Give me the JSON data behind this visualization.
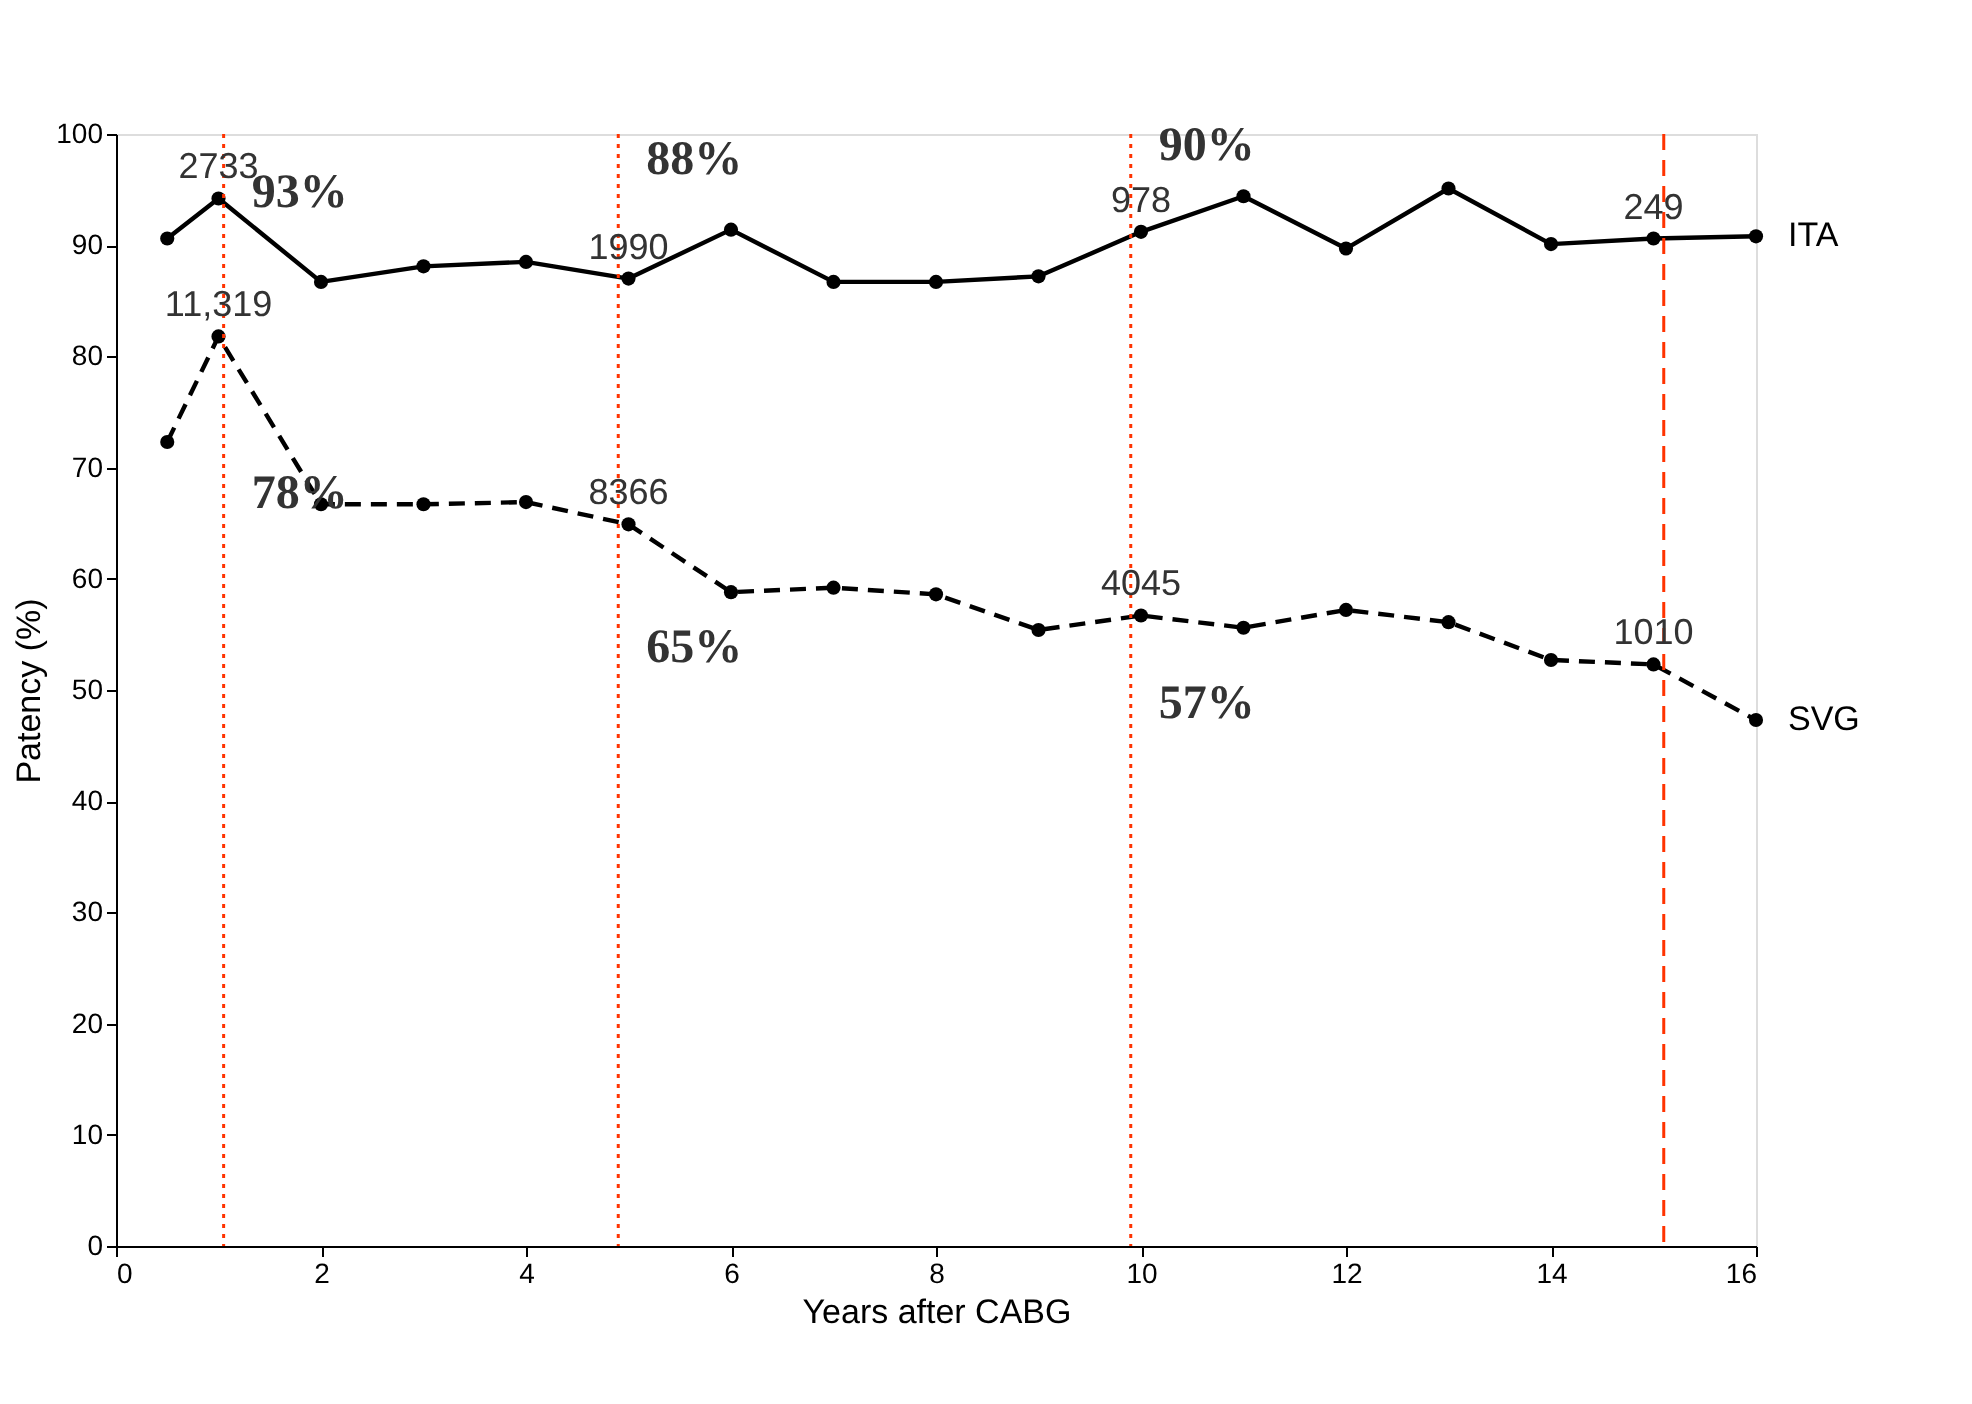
{
  "chart_data": {
    "type": "line",
    "xlabel": "Years after CABG",
    "ylabel": "Patency (%)",
    "x": [
      0.5,
      1,
      2,
      3,
      4,
      5,
      6,
      7,
      8,
      9,
      10,
      11,
      12,
      13,
      14,
      15,
      16
    ],
    "xlim": [
      0,
      16
    ],
    "xticks": [
      0,
      2,
      4,
      6,
      8,
      10,
      12,
      14,
      16
    ],
    "ylim": [
      0,
      100
    ],
    "yticks": [
      0,
      10,
      20,
      30,
      40,
      50,
      60,
      70,
      80,
      90,
      100
    ],
    "grid": false,
    "marker": "circle",
    "series": [
      {
        "name": "ITA",
        "color": "#000000",
        "line_style": "solid",
        "values": [
          90.6,
          94.2,
          86.7,
          88.1,
          88.5,
          87.0,
          91.4,
          86.7,
          86.7,
          87.2,
          91.2,
          94.4,
          89.7,
          95.1,
          90.1,
          90.6,
          90.8
        ]
      },
      {
        "name": "SVG",
        "color": "#000000",
        "line_style": "dashed",
        "values": [
          72.3,
          81.8,
          66.7,
          66.7,
          66.9,
          64.9,
          58.8,
          59.2,
          58.6,
          55.4,
          56.7,
          55.6,
          57.2,
          56.1,
          52.7,
          52.3,
          47.3
        ]
      }
    ],
    "ref_lines": [
      {
        "axis": "x",
        "value": 1.05,
        "color": "#ff3300",
        "line_style": "dotted"
      },
      {
        "axis": "x",
        "value": 4.9,
        "color": "#ff3300",
        "line_style": "dotted"
      },
      {
        "axis": "x",
        "value": 9.9,
        "color": "#ff3300",
        "line_style": "dotted"
      },
      {
        "axis": "x",
        "value": 15.1,
        "color": "#ff3300",
        "line_style": "dashed"
      }
    ],
    "annotations": [
      {
        "text": "2733",
        "x": 1,
        "y": 94.2
      },
      {
        "text": "1990",
        "x": 5,
        "y": 87.0
      },
      {
        "text": "978",
        "x": 10,
        "y": 91.2
      },
      {
        "text": "249",
        "x": 15,
        "y": 90.6
      },
      {
        "text": "11,319",
        "x": 1,
        "y": 81.8
      },
      {
        "text": "8366",
        "x": 5,
        "y": 64.9
      },
      {
        "text": "4045",
        "x": 10,
        "y": 56.7
      },
      {
        "text": "1010",
        "x": 15,
        "y": 52.3
      },
      {
        "text": "93%",
        "x": 1.05,
        "y": 93.3
      },
      {
        "text": "88%",
        "x": 4.9,
        "y": 96.2
      },
      {
        "text": "90%",
        "x": 9.9,
        "y": 97.5
      },
      {
        "text": "78%",
        "x": 1.05,
        "y": 66.2
      },
      {
        "text": "65%",
        "x": 4.9,
        "y": 52.3
      },
      {
        "text": "57%",
        "x": 9.9,
        "y": 47.3
      }
    ]
  }
}
